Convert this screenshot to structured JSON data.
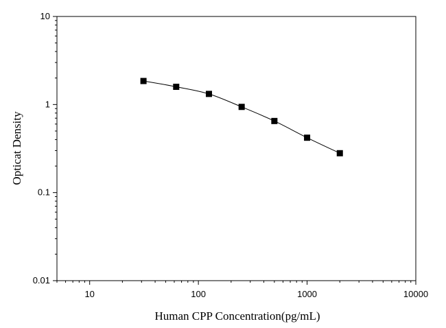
{
  "chart_data": {
    "type": "scatter",
    "xscale": "log",
    "yscale": "log",
    "xlim": [
      5,
      10000
    ],
    "ylim": [
      0.01,
      10
    ],
    "xlabel": "Human CPP  Concentration(pg/mL)",
    "ylabel": "Opticat Density",
    "x_ticks": [
      {
        "value": 10,
        "label": "10"
      },
      {
        "value": 100,
        "label": "100"
      },
      {
        "value": 1000,
        "label": "1000"
      },
      {
        "value": 10000,
        "label": "10000"
      }
    ],
    "y_ticks": [
      {
        "value": 0.01,
        "label": "0.01"
      },
      {
        "value": 0.1,
        "label": "0.1"
      },
      {
        "value": 1,
        "label": "1"
      },
      {
        "value": 10,
        "label": "10"
      }
    ],
    "series": [
      {
        "x": [
          31.25,
          62.5,
          125,
          250,
          500,
          1000,
          2000
        ],
        "y": [
          1.85,
          1.59,
          1.32,
          0.94,
          0.65,
          0.42,
          0.28
        ],
        "marker": "square",
        "fit_line": true,
        "color": "#000000"
      }
    ],
    "grid": false,
    "legend": false
  }
}
